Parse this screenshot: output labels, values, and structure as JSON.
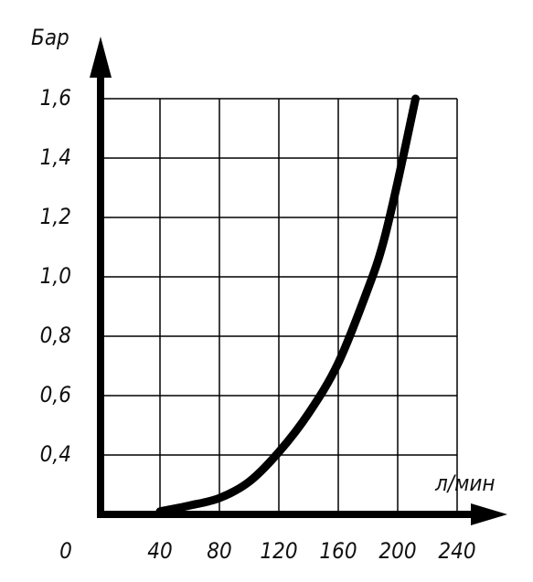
{
  "chart_data": {
    "type": "line",
    "y_label": "Бар",
    "x_label": "л/мин",
    "x": [
      40,
      60,
      80,
      100,
      120,
      140,
      160,
      180,
      190,
      200,
      212
    ],
    "series": [
      {
        "color": "#000000",
        "values": [
          0.21,
          0.23,
          0.255,
          0.31,
          0.41,
          0.54,
          0.71,
          0.96,
          1.11,
          1.32,
          1.6
        ]
      }
    ],
    "xlim": [
      0,
      240
    ],
    "xticks": [
      0,
      40,
      80,
      120,
      160,
      200,
      240
    ],
    "ylim": [
      0.2,
      1.6
    ],
    "yticks": [
      {
        "value": 0.4,
        "label": "0,4"
      },
      {
        "value": 0.6,
        "label": "0,6"
      },
      {
        "value": 0.8,
        "label": "0,8"
      },
      {
        "value": 1.0,
        "label": "1,0"
      },
      {
        "value": 1.2,
        "label": "1,2"
      },
      {
        "value": 1.4,
        "label": "1,4"
      },
      {
        "value": 1.6,
        "label": "1,6"
      }
    ],
    "grid": true
  }
}
